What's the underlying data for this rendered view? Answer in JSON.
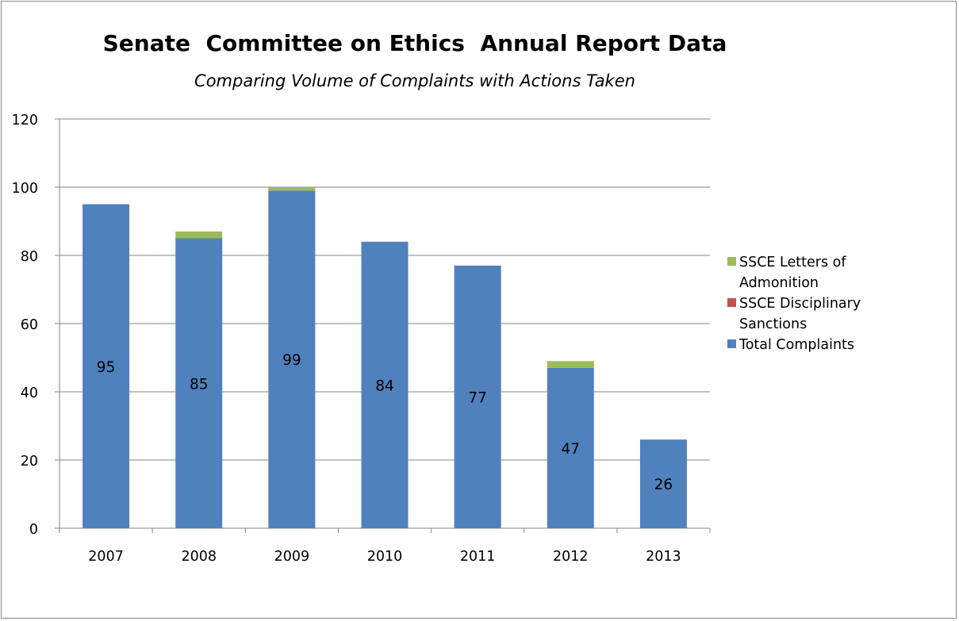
{
  "chart_data": {
    "type": "bar",
    "stacked": true,
    "title": "Senate  Committee on Ethics  Annual Report Data",
    "subtitle": "Comparing Volume of Complaints with Actions Taken",
    "xlabel": "",
    "ylabel": "",
    "categories": [
      "2007",
      "2008",
      "2009",
      "2010",
      "2011",
      "2012",
      "2013"
    ],
    "series": [
      {
        "name": "Total Complaints",
        "values": [
          95,
          85,
          99,
          84,
          77,
          47,
          26
        ],
        "color": "#4f81bd",
        "data_labels": [
          "95",
          "85",
          "99",
          "84",
          "77",
          "47",
          "26"
        ]
      },
      {
        "name": "SSCE Disciplinary Sanctions",
        "values": [
          0,
          0,
          0,
          0,
          0,
          0,
          0
        ],
        "color": "#c0504d"
      },
      {
        "name": "SSCE Letters of Admonition",
        "values": [
          0,
          2,
          1,
          0,
          0,
          2,
          0
        ],
        "color": "#9bbb59"
      }
    ],
    "ylim": [
      0,
      120
    ],
    "yticks": [
      0,
      20,
      40,
      60,
      80,
      100,
      120
    ],
    "ytick_labels": [
      "0",
      "20",
      "40",
      "60",
      "80",
      "100",
      "120"
    ],
    "grid": true,
    "legend_position": "right",
    "legend_order": [
      "SSCE Letters of Admonition",
      "SSCE Disciplinary Sanctions",
      "Total Complaints"
    ],
    "legend_labels": {
      "SSCE Letters of Admonition": [
        "SSCE Letters of",
        "Admonition"
      ],
      "SSCE Disciplinary Sanctions": [
        "SSCE Disciplinary",
        "Sanctions"
      ],
      "Total Complaints": [
        "Total Complaints"
      ]
    }
  }
}
